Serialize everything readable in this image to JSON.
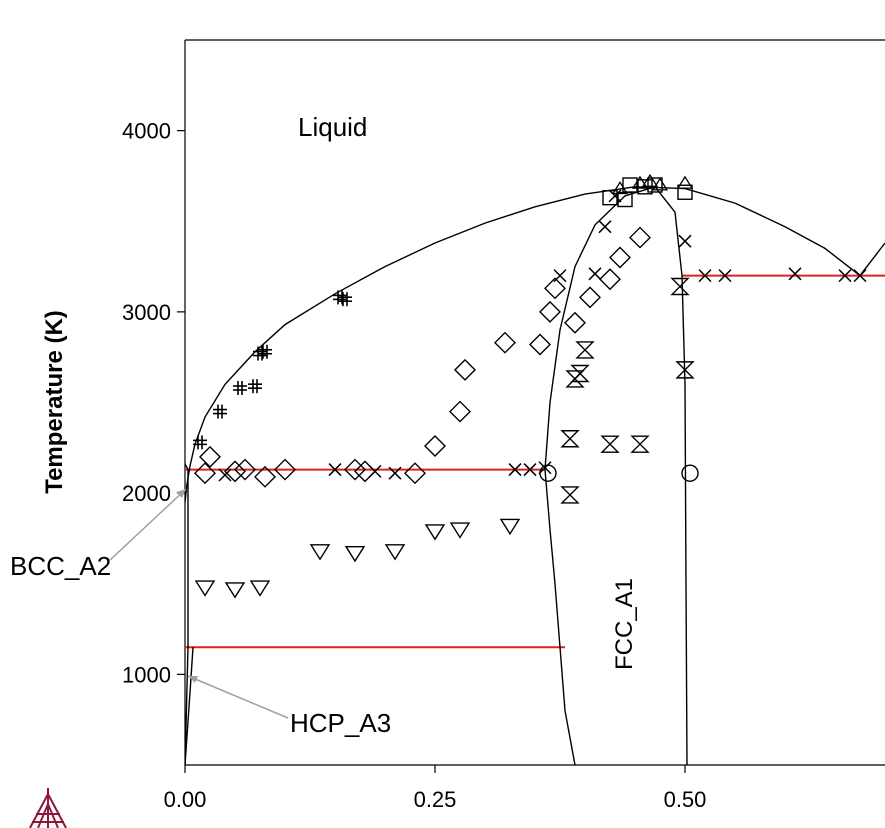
{
  "chart_data": {
    "type": "scatter",
    "title": "",
    "xlabel": "",
    "ylabel": "Temperature (K)",
    "xlim": [
      0.0,
      0.7
    ],
    "ylim": [
      500,
      4500
    ],
    "x_ticks": [
      {
        "value": 0.0,
        "label": "0.00"
      },
      {
        "value": 0.25,
        "label": "0.25"
      },
      {
        "value": 0.5,
        "label": "0.50"
      }
    ],
    "y_ticks": [
      {
        "value": 1000,
        "label": "1000"
      },
      {
        "value": 2000,
        "label": "2000"
      },
      {
        "value": 3000,
        "label": "3000"
      },
      {
        "value": 4000,
        "label": "4000"
      }
    ],
    "grid": false,
    "colors": {
      "boundary": "#000000",
      "invariant": "#e02020",
      "leader": "#a0a0a0",
      "logo": "#8b1a3a"
    },
    "phase_labels": {
      "liquid": "Liquid",
      "bcc": "BCC_A2",
      "hcp": "HCP_A3",
      "fcc": "FCC_A1"
    },
    "phase_boundaries": [
      {
        "name": "liquidus-left",
        "points": [
          [
            0.0,
            1950
          ],
          [
            0.002,
            2050
          ],
          [
            0.005,
            2150
          ],
          [
            0.01,
            2270
          ],
          [
            0.02,
            2420
          ],
          [
            0.04,
            2600
          ],
          [
            0.07,
            2780
          ],
          [
            0.1,
            2930
          ],
          [
            0.15,
            3100
          ],
          [
            0.2,
            3250
          ],
          [
            0.25,
            3380
          ],
          [
            0.3,
            3490
          ],
          [
            0.35,
            3580
          ],
          [
            0.4,
            3650
          ],
          [
            0.45,
            3690
          ],
          [
            0.5,
            3680
          ]
        ]
      },
      {
        "name": "liquidus-right",
        "points": [
          [
            0.5,
            3680
          ],
          [
            0.55,
            3600
          ],
          [
            0.6,
            3470
          ],
          [
            0.64,
            3350
          ],
          [
            0.675,
            3200
          ],
          [
            0.7,
            3380
          ]
        ]
      },
      {
        "name": "fcc-left-upper",
        "points": [
          [
            0.36,
            2130
          ],
          [
            0.365,
            2500
          ],
          [
            0.375,
            2900
          ],
          [
            0.39,
            3250
          ],
          [
            0.41,
            3480
          ],
          [
            0.44,
            3640
          ],
          [
            0.47,
            3690
          ]
        ]
      },
      {
        "name": "fcc-left-lower",
        "points": [
          [
            0.36,
            2130
          ],
          [
            0.365,
            1800
          ],
          [
            0.37,
            1500
          ],
          [
            0.375,
            1150
          ],
          [
            0.38,
            800
          ],
          [
            0.39,
            500
          ]
        ]
      },
      {
        "name": "fcc-right",
        "points": [
          [
            0.47,
            3690
          ],
          [
            0.49,
            3550
          ],
          [
            0.497,
            3200
          ],
          [
            0.5,
            2600
          ],
          [
            0.501,
            1500
          ],
          [
            0.502,
            500
          ]
        ]
      },
      {
        "name": "bcc-solvus",
        "points": [
          [
            0.0,
            500
          ],
          [
            0.003,
            1150
          ],
          [
            0.003,
            2130
          ],
          [
            0.0,
            2160
          ]
        ]
      },
      {
        "name": "hcp-solvus",
        "points": [
          [
            0.0,
            500
          ],
          [
            0.005,
            900
          ],
          [
            0.008,
            1150
          ]
        ]
      }
    ],
    "invariant_lines": [
      {
        "x": [
          0.0,
          0.36
        ],
        "y": 2130
      },
      {
        "x": [
          0.0,
          0.38
        ],
        "y": 1150
      },
      {
        "x": [
          0.497,
          0.7
        ],
        "y": 3200
      }
    ],
    "series": [
      {
        "marker": "hash",
        "points": [
          [
            0.015,
            2280
          ],
          [
            0.035,
            2450
          ],
          [
            0.055,
            2580
          ],
          [
            0.07,
            2590
          ],
          [
            0.075,
            2770
          ],
          [
            0.08,
            2780
          ],
          [
            0.155,
            3080
          ],
          [
            0.16,
            3070
          ]
        ]
      },
      {
        "marker": "diamond",
        "points": [
          [
            0.02,
            2110
          ],
          [
            0.025,
            2200
          ],
          [
            0.05,
            2120
          ],
          [
            0.06,
            2130
          ],
          [
            0.08,
            2090
          ],
          [
            0.1,
            2130
          ],
          [
            0.17,
            2130
          ],
          [
            0.18,
            2120
          ],
          [
            0.23,
            2110
          ],
          [
            0.25,
            2260
          ],
          [
            0.275,
            2450
          ],
          [
            0.28,
            2680
          ],
          [
            0.32,
            2830
          ],
          [
            0.355,
            2820
          ],
          [
            0.365,
            3000
          ],
          [
            0.37,
            3130
          ],
          [
            0.39,
            2940
          ],
          [
            0.405,
            3080
          ],
          [
            0.425,
            3180
          ],
          [
            0.435,
            3300
          ],
          [
            0.455,
            3410
          ]
        ]
      },
      {
        "marker": "triangle-down",
        "points": [
          [
            0.02,
            1480
          ],
          [
            0.05,
            1470
          ],
          [
            0.075,
            1480
          ],
          [
            0.135,
            1680
          ],
          [
            0.17,
            1670
          ],
          [
            0.21,
            1680
          ],
          [
            0.25,
            1790
          ],
          [
            0.275,
            1800
          ],
          [
            0.325,
            1820
          ]
        ]
      },
      {
        "marker": "x",
        "points": [
          [
            0.04,
            2100
          ],
          [
            0.15,
            2130
          ],
          [
            0.19,
            2120
          ],
          [
            0.21,
            2110
          ],
          [
            0.33,
            2130
          ],
          [
            0.345,
            2130
          ],
          [
            0.36,
            2140
          ],
          [
            0.375,
            3200
          ],
          [
            0.41,
            3210
          ],
          [
            0.42,
            3470
          ],
          [
            0.43,
            3640
          ],
          [
            0.5,
            3390
          ],
          [
            0.52,
            3200
          ],
          [
            0.54,
            3200
          ],
          [
            0.61,
            3210
          ],
          [
            0.66,
            3200
          ],
          [
            0.675,
            3200
          ]
        ]
      },
      {
        "marker": "bowtie",
        "points": [
          [
            0.385,
            2300
          ],
          [
            0.385,
            1990
          ],
          [
            0.39,
            2630
          ],
          [
            0.395,
            2660
          ],
          [
            0.4,
            2790
          ],
          [
            0.425,
            2270
          ],
          [
            0.455,
            2270
          ],
          [
            0.495,
            3140
          ],
          [
            0.5,
            2680
          ]
        ]
      },
      {
        "marker": "circle",
        "points": [
          [
            0.363,
            2110
          ],
          [
            0.505,
            2110
          ]
        ]
      },
      {
        "marker": "square",
        "points": [
          [
            0.425,
            3630
          ],
          [
            0.44,
            3620
          ],
          [
            0.445,
            3700
          ],
          [
            0.46,
            3690
          ],
          [
            0.47,
            3700
          ],
          [
            0.5,
            3660
          ]
        ]
      },
      {
        "marker": "triangle-up",
        "points": [
          [
            0.435,
            3680
          ],
          [
            0.455,
            3710
          ],
          [
            0.465,
            3720
          ],
          [
            0.475,
            3700
          ],
          [
            0.5,
            3710
          ]
        ]
      }
    ],
    "annotations": [
      {
        "text": "Liquid",
        "x": 0.11,
        "y": 4000
      },
      {
        "text": "FCC_A1",
        "x": 0.46,
        "y": 1500,
        "rotate": -90
      }
    ]
  }
}
